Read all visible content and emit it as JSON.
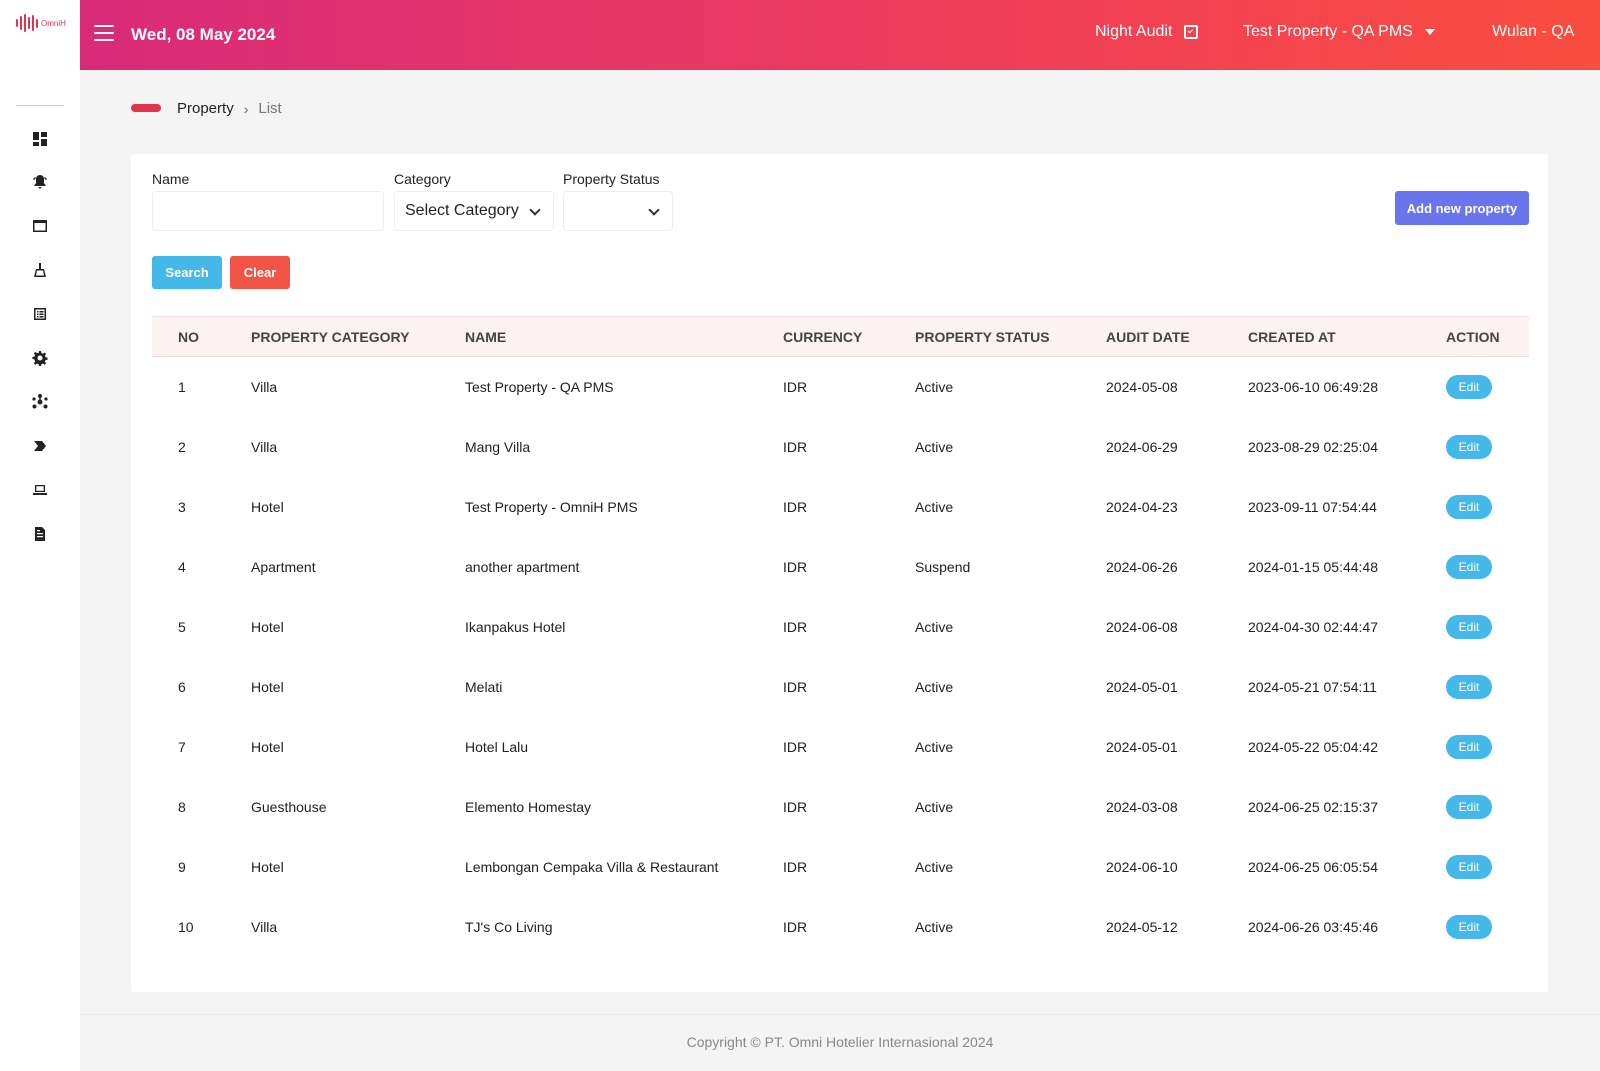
{
  "app": {
    "logo_text": "OmniH"
  },
  "header": {
    "date": "Wed, 08 May 2024",
    "night_audit": "Night Audit",
    "property": "Test Property - QA PMS",
    "user": "Wulan - QA"
  },
  "sidebar": {
    "items": [
      {
        "icon": "dashboard-icon"
      },
      {
        "icon": "bell-icon"
      },
      {
        "icon": "window-icon"
      },
      {
        "icon": "housekeeping-icon"
      },
      {
        "icon": "list-icon"
      },
      {
        "icon": "gear-icon"
      },
      {
        "icon": "network-icon"
      },
      {
        "icon": "tag-icon"
      },
      {
        "icon": "laptop-icon"
      },
      {
        "icon": "report-icon"
      }
    ]
  },
  "breadcrumb": {
    "root": "Property",
    "separator": "›",
    "current": "List"
  },
  "filters": {
    "name_label": "Name",
    "name_value": "",
    "category_label": "Category",
    "category_value": "Select Category",
    "status_label": "Property Status",
    "status_value": "",
    "search_label": "Search",
    "clear_label": "Clear",
    "add_label": "Add new property"
  },
  "table": {
    "columns": [
      "NO",
      "PROPERTY CATEGORY",
      "NAME",
      "CURRENCY",
      "PROPERTY STATUS",
      "AUDIT DATE",
      "CREATED AT",
      "ACTION"
    ],
    "rows": [
      {
        "no": "1",
        "category": "Villa",
        "name": "Test Property - QA PMS",
        "currency": "IDR",
        "status": "Active",
        "audit_date": "2024-05-08",
        "created_at": "2023-06-10 06:49:28",
        "action": "Edit"
      },
      {
        "no": "2",
        "category": "Villa",
        "name": "Mang Villa",
        "currency": "IDR",
        "status": "Active",
        "audit_date": "2024-06-29",
        "created_at": "2023-08-29 02:25:04",
        "action": "Edit"
      },
      {
        "no": "3",
        "category": "Hotel",
        "name": "Test Property - OmniH PMS",
        "currency": "IDR",
        "status": "Active",
        "audit_date": "2024-04-23",
        "created_at": "2023-09-11 07:54:44",
        "action": "Edit"
      },
      {
        "no": "4",
        "category": "Apartment",
        "name": "another apartment",
        "currency": "IDR",
        "status": "Suspend",
        "audit_date": "2024-06-26",
        "created_at": "2024-01-15 05:44:48",
        "action": "Edit"
      },
      {
        "no": "5",
        "category": "Hotel",
        "name": "Ikanpakus Hotel",
        "currency": "IDR",
        "status": "Active",
        "audit_date": "2024-06-08",
        "created_at": "2024-04-30 02:44:47",
        "action": "Edit"
      },
      {
        "no": "6",
        "category": "Hotel",
        "name": "Melati",
        "currency": "IDR",
        "status": "Active",
        "audit_date": "2024-05-01",
        "created_at": "2024-05-21 07:54:11",
        "action": "Edit"
      },
      {
        "no": "7",
        "category": "Hotel",
        "name": "Hotel Lalu",
        "currency": "IDR",
        "status": "Active",
        "audit_date": "2024-05-01",
        "created_at": "2024-05-22 05:04:42",
        "action": "Edit"
      },
      {
        "no": "8",
        "category": "Guesthouse",
        "name": "Elemento Homestay",
        "currency": "IDR",
        "status": "Active",
        "audit_date": "2024-03-08",
        "created_at": "2024-06-25 02:15:37",
        "action": "Edit"
      },
      {
        "no": "9",
        "category": "Hotel",
        "name": "Lembongan Cempaka Villa & Restaurant",
        "currency": "IDR",
        "status": "Active",
        "audit_date": "2024-06-10",
        "created_at": "2024-06-25 06:05:54",
        "action": "Edit"
      },
      {
        "no": "10",
        "category": "Villa",
        "name": "TJ's Co Living",
        "currency": "IDR",
        "status": "Active",
        "audit_date": "2024-05-12",
        "created_at": "2024-06-26 03:45:46",
        "action": "Edit"
      }
    ]
  },
  "footer": {
    "copyright": "Copyright © PT. Omni Hotelier Internasional 2024"
  },
  "colors": {
    "brand": "#e2334f",
    "header_start": "#d92a7a",
    "header_end": "#f94d3f",
    "primary_button": "#6975ec",
    "info_button": "#45b8ea",
    "danger_button": "#f25545"
  }
}
